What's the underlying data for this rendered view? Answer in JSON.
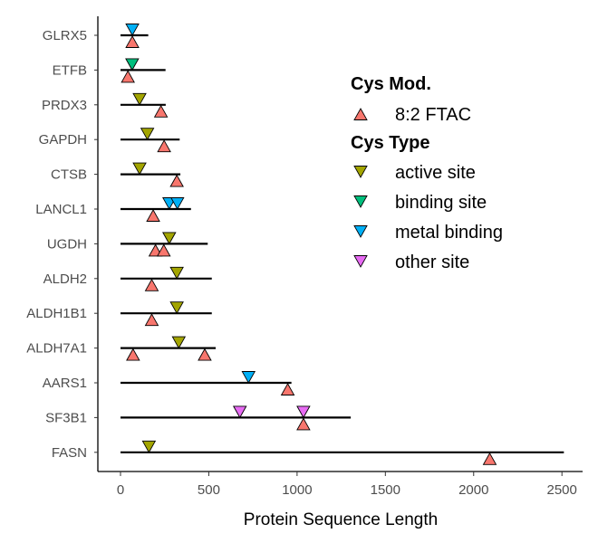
{
  "chart_data": {
    "type": "scatter",
    "xlabel": "Protein Sequence Length",
    "ylabel": "",
    "xlim": [
      -120,
      2580
    ],
    "x_ticks": [
      0,
      500,
      1000,
      1500,
      2000,
      2500
    ],
    "grid": false,
    "legend_position": "top-right",
    "proteins": [
      {
        "name": "GLRX5",
        "length": 157
      },
      {
        "name": "ETFB",
        "length": 255
      },
      {
        "name": "PRDX3",
        "length": 256
      },
      {
        "name": "GAPDH",
        "length": 335
      },
      {
        "name": "CTSB",
        "length": 339
      },
      {
        "name": "LANCL1",
        "length": 399
      },
      {
        "name": "UGDH",
        "length": 494
      },
      {
        "name": "ALDH2",
        "length": 517
      },
      {
        "name": "ALDH1B1",
        "length": 517
      },
      {
        "name": "ALDH7A1",
        "length": 539
      },
      {
        "name": "AARS1",
        "length": 968
      },
      {
        "name": "SF3B1",
        "length": 1304
      },
      {
        "name": "FASN",
        "length": 2511
      }
    ],
    "cys_modification": [
      {
        "protein": "GLRX5",
        "position": 67
      },
      {
        "protein": "ETFB",
        "position": 42
      },
      {
        "protein": "PRDX3",
        "position": 229
      },
      {
        "protein": "GAPDH",
        "position": 247
      },
      {
        "protein": "CTSB",
        "position": 319
      },
      {
        "protein": "LANCL1",
        "position": 185
      },
      {
        "protein": "UGDH",
        "position": 198
      },
      {
        "protein": "UGDH",
        "position": 245
      },
      {
        "protein": "ALDH2",
        "position": 177
      },
      {
        "protein": "ALDH1B1",
        "position": 177
      },
      {
        "protein": "ALDH7A1",
        "position": 71
      },
      {
        "protein": "ALDH7A1",
        "position": 477
      },
      {
        "protein": "AARS1",
        "position": 947
      },
      {
        "protein": "SF3B1",
        "position": 1036
      },
      {
        "protein": "FASN",
        "position": 2091
      }
    ],
    "cys_type_sites": [
      {
        "protein": "GLRX5",
        "position": 67,
        "type": "metal binding"
      },
      {
        "protein": "ETFB",
        "position": 66,
        "type": "binding site"
      },
      {
        "protein": "PRDX3",
        "position": 108,
        "type": "active site"
      },
      {
        "protein": "GAPDH",
        "position": 152,
        "type": "active site"
      },
      {
        "protein": "CTSB",
        "position": 108,
        "type": "active site"
      },
      {
        "protein": "LANCL1",
        "position": 276,
        "type": "metal binding"
      },
      {
        "protein": "LANCL1",
        "position": 322,
        "type": "metal binding"
      },
      {
        "protein": "UGDH",
        "position": 276,
        "type": "active site"
      },
      {
        "protein": "ALDH2",
        "position": 319,
        "type": "active site"
      },
      {
        "protein": "ALDH1B1",
        "position": 319,
        "type": "active site"
      },
      {
        "protein": "ALDH7A1",
        "position": 330,
        "type": "active site"
      },
      {
        "protein": "AARS1",
        "position": 725,
        "type": "metal binding"
      },
      {
        "protein": "SF3B1",
        "position": 676,
        "type": "other site"
      },
      {
        "protein": "SF3B1",
        "position": 1036,
        "type": "other site"
      },
      {
        "protein": "FASN",
        "position": 161,
        "type": "active site"
      }
    ],
    "legend": {
      "mod_title": "Cys Mod.",
      "mod_items": [
        {
          "label": "8:2 FTAC",
          "color": "#f8766d"
        }
      ],
      "type_title": "Cys Type",
      "type_items": [
        {
          "label": "active site",
          "color": "#a3a500"
        },
        {
          "label": "binding site",
          "color": "#00bf7d"
        },
        {
          "label": "metal binding",
          "color": "#00b0f6"
        },
        {
          "label": "other site",
          "color": "#e76bf3"
        }
      ]
    }
  }
}
